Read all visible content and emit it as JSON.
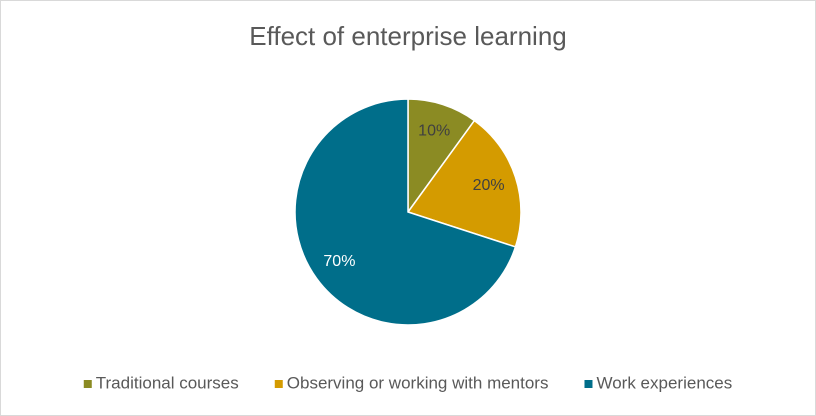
{
  "chart_data": {
    "type": "pie",
    "title": "Effect of enterprise learning",
    "categories": [
      "Traditional courses",
      "Observing or working with mentors",
      "Work experiences"
    ],
    "values": [
      10,
      20,
      70
    ],
    "value_labels": [
      "10%",
      "20%",
      "70%"
    ],
    "colors": [
      "#8b8b23",
      "#d49b00",
      "#006e8a"
    ],
    "legend": "bottom"
  }
}
